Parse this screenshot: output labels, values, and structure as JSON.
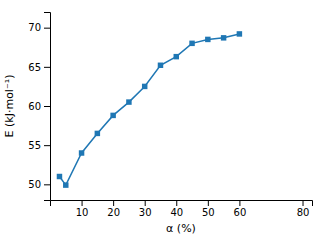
{
  "chart_data": {
    "type": "line",
    "x": [
      3,
      5,
      10,
      15,
      20,
      25,
      30,
      35,
      40,
      45,
      50,
      55,
      60
    ],
    "values": [
      51.0,
      49.9,
      54.0,
      56.5,
      58.8,
      60.5,
      62.5,
      65.2,
      66.3,
      68.0,
      68.5,
      68.7,
      69.2
    ],
    "xlabel": "α (%)",
    "ylabel": "E (kJ·mol⁻¹)",
    "xlim": [
      0,
      83
    ],
    "ylim": [
      48,
      72
    ],
    "xticks": [
      10,
      20,
      30,
      40,
      50,
      60,
      80
    ],
    "yticks": [
      50,
      55,
      60,
      65,
      70
    ],
    "marker": "square",
    "grid": false
  }
}
